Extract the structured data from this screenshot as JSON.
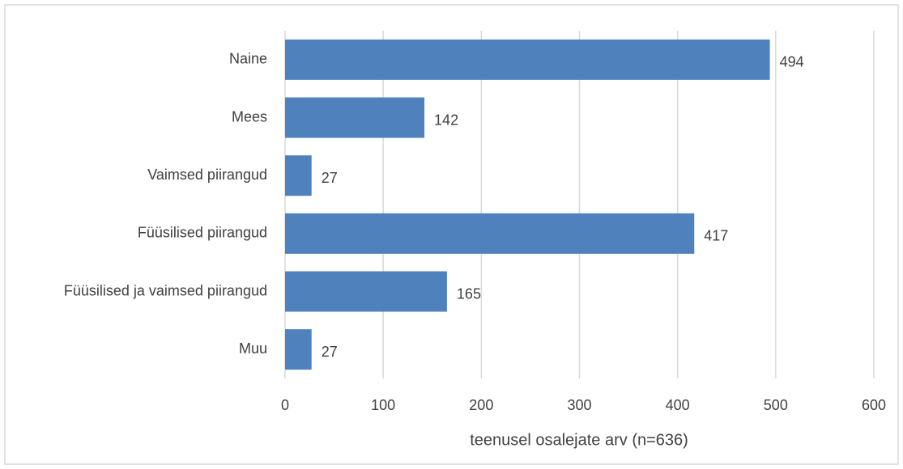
{
  "chart_data": {
    "type": "bar",
    "orientation": "horizontal",
    "categories": [
      "Naine",
      "Mees",
      "Vaimsed piirangud",
      "Füüsilised piirangud",
      "Füüsilised ja vaimsed piirangud",
      "Muu"
    ],
    "values": [
      494,
      142,
      27,
      417,
      165,
      27
    ],
    "color": "#4f81bd",
    "x_label": "teenusel osalejate arv (n=636)",
    "xlim": [
      0,
      600
    ],
    "xticks": [
      0,
      100,
      200,
      300,
      400,
      500,
      600
    ],
    "grid": true
  }
}
